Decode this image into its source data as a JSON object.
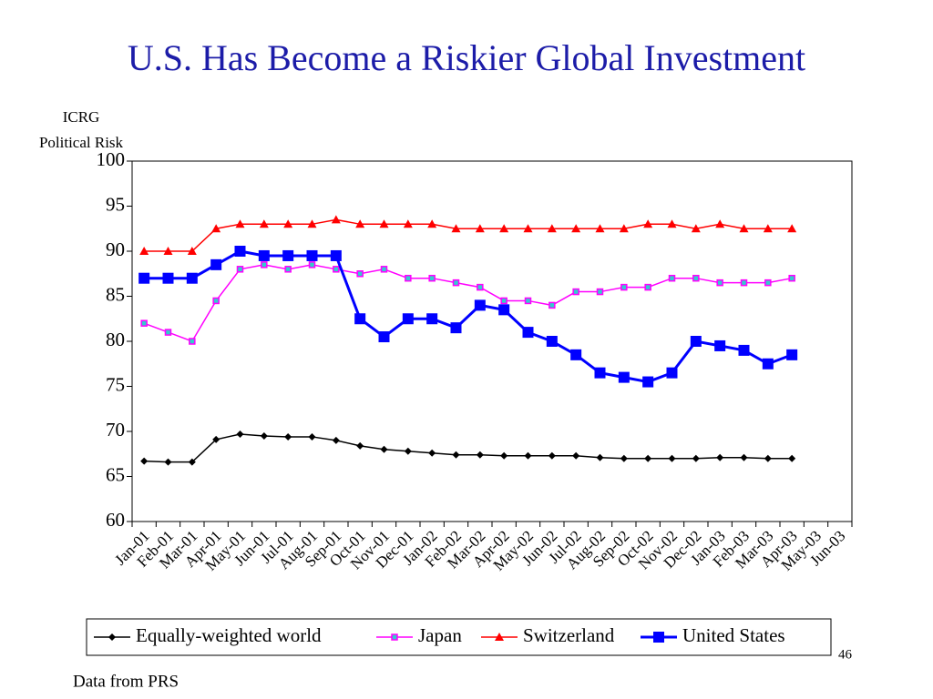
{
  "chart_data": {
    "type": "line",
    "title": "U.S. Has Become a Riskier Global Investment",
    "y_label": [
      "ICRG",
      "Political Risk"
    ],
    "page_number": "46",
    "source": "Data from PRS",
    "categories": [
      "Jan-01",
      "Feb-01",
      "Mar-01",
      "Apr-01",
      "May-01",
      "Jun-01",
      "Jul-01",
      "Aug-01",
      "Sep-01",
      "Oct-01",
      "Nov-01",
      "Dec-01",
      "Jan-02",
      "Feb-02",
      "Mar-02",
      "Apr-02",
      "May-02",
      "Jun-02",
      "Jul-02",
      "Aug-02",
      "Sep-02",
      "Oct-02",
      "Nov-02",
      "Dec-02",
      "Jan-03",
      "Feb-03",
      "Mar-03",
      "Apr-03",
      "May-03",
      "Jun-03"
    ],
    "ylim": [
      60,
      100
    ],
    "yticks": [
      60,
      65,
      70,
      75,
      80,
      85,
      90,
      95,
      100
    ],
    "legend": "bottom",
    "series": [
      {
        "name": "Equally-weighted world",
        "color": "#000000",
        "marker": "diamond",
        "values": [
          66.7,
          66.6,
          66.6,
          69.1,
          69.7,
          69.5,
          69.4,
          69.4,
          69,
          68.4,
          68,
          67.8,
          67.6,
          67.4,
          67.4,
          67.3,
          67.3,
          67.3,
          67.3,
          67.1,
          67,
          67,
          67,
          67,
          67.1,
          67.1,
          67,
          67,
          null,
          null
        ]
      },
      {
        "name": "Japan",
        "color": "#ff00ff",
        "marker": "square-small",
        "values": [
          82,
          81,
          80,
          84.5,
          88,
          88.5,
          88,
          88.5,
          88,
          87.5,
          88,
          87,
          87,
          86.5,
          86,
          84.5,
          84.5,
          84,
          85.5,
          85.5,
          86,
          86,
          87,
          87,
          86.5,
          86.5,
          86.5,
          87,
          null,
          null
        ]
      },
      {
        "name": "Switzerland",
        "color": "#ff0000",
        "marker": "triangle",
        "values": [
          90,
          90,
          90,
          92.5,
          93,
          93,
          93,
          93,
          93.5,
          93,
          93,
          93,
          93,
          92.5,
          92.5,
          92.5,
          92.5,
          92.5,
          92.5,
          92.5,
          92.5,
          93,
          93,
          92.5,
          93,
          92.5,
          92.5,
          92.5,
          null,
          null
        ]
      },
      {
        "name": "United States",
        "color": "#0000ff",
        "marker": "square",
        "values": [
          87,
          87,
          87,
          88.5,
          90,
          89.5,
          89.5,
          89.5,
          89.5,
          82.5,
          80.5,
          82.5,
          82.5,
          81.5,
          84,
          83.5,
          81,
          80,
          78.5,
          76.5,
          76,
          75.5,
          76.5,
          80,
          79.5,
          79,
          77.5,
          78.5,
          null,
          null
        ]
      }
    ]
  }
}
